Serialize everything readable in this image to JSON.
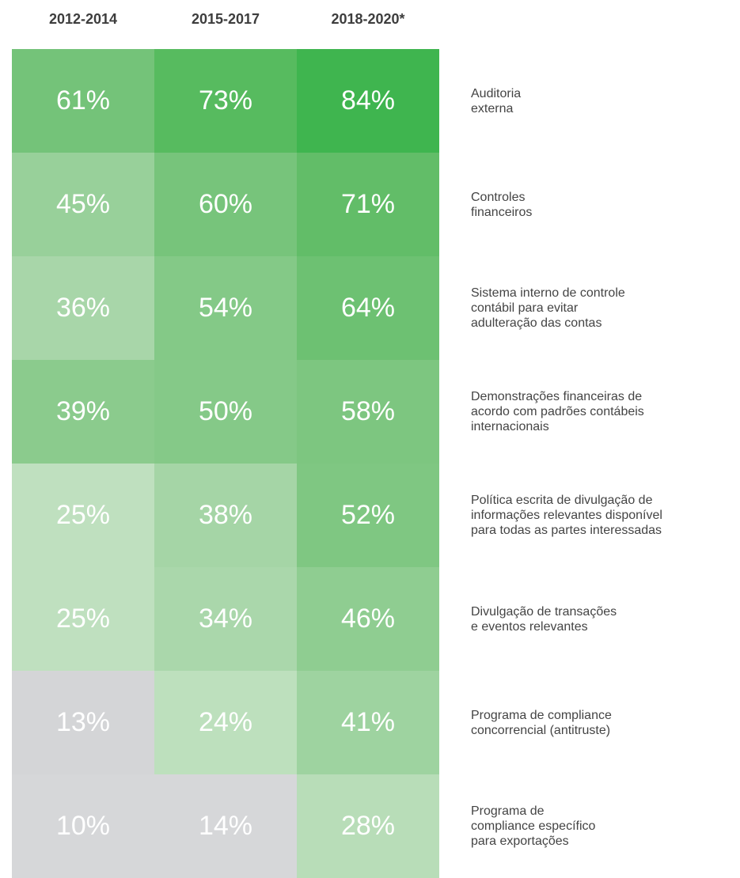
{
  "chart_data": {
    "type": "heatmap",
    "columns": [
      "2012-2014",
      "2015-2017",
      "2018-2020*"
    ],
    "rows": [
      "Auditoria\nexterna",
      "Controles\nfinanceiros",
      "Sistema interno de controle\ncontábil para evitar\nadulteração das contas",
      "Demonstrações financeiras de\nacordo com padrões contábeis\ninternacionais",
      "Política escrita de divulgação de\ninformações relevantes disponível\npara todas as partes interessadas",
      "Divulgação de transações\ne eventos relevantes",
      "Programa de compliance\nconcorrencial (antitruste)",
      "Programa de\ncompliance específico\npara exportações"
    ],
    "values": [
      [
        61,
        73,
        84
      ],
      [
        45,
        60,
        71
      ],
      [
        36,
        54,
        64
      ],
      [
        39,
        50,
        58
      ],
      [
        25,
        38,
        52
      ],
      [
        25,
        34,
        46
      ],
      [
        13,
        24,
        41
      ],
      [
        10,
        14,
        28
      ]
    ],
    "value_labels": [
      [
        "61%",
        "73%",
        "84%"
      ],
      [
        "45%",
        "60%",
        "71%"
      ],
      [
        "36%",
        "54%",
        "64%"
      ],
      [
        "39%",
        "50%",
        "58%"
      ],
      [
        "25%",
        "38%",
        "52%"
      ],
      [
        "25%",
        "34%",
        "46%"
      ],
      [
        "13%",
        "24%",
        "41%"
      ],
      [
        "10%",
        "14%",
        "28%"
      ]
    ],
    "colors": [
      [
        "#74c379",
        "#57bb5f",
        "#3fb54f"
      ],
      [
        "#98d09a",
        "#77c47b",
        "#62bd68"
      ],
      [
        "#a8d6a9",
        "#84c987",
        "#6dc172"
      ],
      [
        "#8bcb8d",
        "#85c988",
        "#7dc680"
      ],
      [
        "#bfe0bf",
        "#a5d5a6",
        "#7fc782"
      ],
      [
        "#bfe0bf",
        "#aad7ab",
        "#8fcd91"
      ],
      [
        "#d4d5d7",
        "#bde0bd",
        "#9ed3a0"
      ],
      [
        "#d6d7d9",
        "#d6d7d9",
        "#b8ddb8"
      ]
    ]
  }
}
